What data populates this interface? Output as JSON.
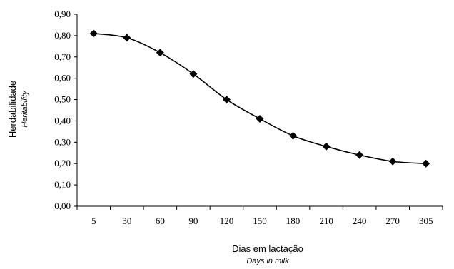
{
  "chart_data": {
    "type": "line",
    "categories": [
      "5",
      "30",
      "60",
      "90",
      "120",
      "150",
      "180",
      "210",
      "240",
      "270",
      "305"
    ],
    "series": [
      {
        "values": [
          0.81,
          0.79,
          0.72,
          0.62,
          0.5,
          0.41,
          0.33,
          0.28,
          0.24,
          0.21,
          0.2
        ]
      }
    ],
    "xlabel": "Dias em lactação",
    "xlabel_sub": "Days in milk",
    "ylabel": "Herdabilidade",
    "ylabel_sub": "Heritability",
    "ylim": [
      0,
      0.9
    ],
    "yticks": [
      "0,00",
      "0,10",
      "0,20",
      "0,30",
      "0,40",
      "0,50",
      "0,60",
      "0,70",
      "0,80",
      "0,90"
    ],
    "grid": false,
    "legend": "none",
    "marker": "diamond",
    "line_color": "#000000"
  }
}
